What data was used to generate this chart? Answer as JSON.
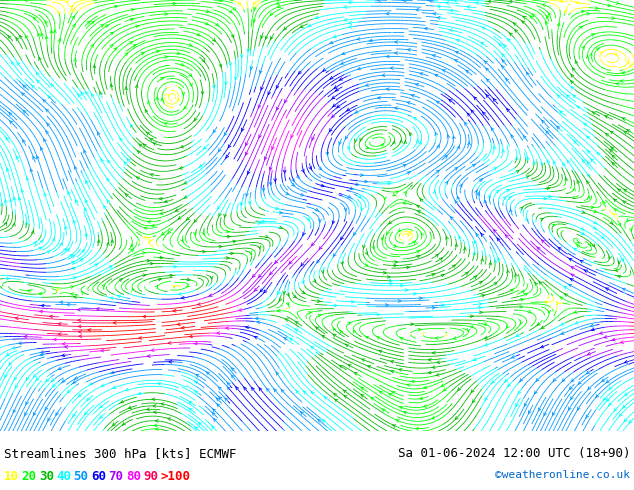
{
  "title_left": "Streamlines 300 hPa [kts] ECMWF",
  "title_right": "Sa 01-06-2024 12:00 UTC (18+90)",
  "credit": "©weatheronline.co.uk",
  "legend_values": [
    "10",
    "20",
    "30",
    "40",
    "50",
    "60",
    "70",
    "80",
    "90",
    ">100"
  ],
  "legend_colors": [
    "#ffff00",
    "#00ff00",
    "#00bb00",
    "#00ffff",
    "#0099ff",
    "#0000ff",
    "#aa00ff",
    "#ff00ff",
    "#ff0055",
    "#ff0000"
  ],
  "bg_color": "#ffffff",
  "figsize": [
    6.34,
    4.9
  ],
  "dpi": 100,
  "speed_bounds": [
    0,
    10,
    20,
    30,
    40,
    50,
    60,
    70,
    80,
    90,
    100,
    150
  ],
  "speed_colors": [
    "#ffff00",
    "#00ff00",
    "#00bb00",
    "#00ffff",
    "#0099ff",
    "#0000ff",
    "#aa00ff",
    "#ff00ff",
    "#ff0055",
    "#ff0000",
    "#ff0000"
  ]
}
